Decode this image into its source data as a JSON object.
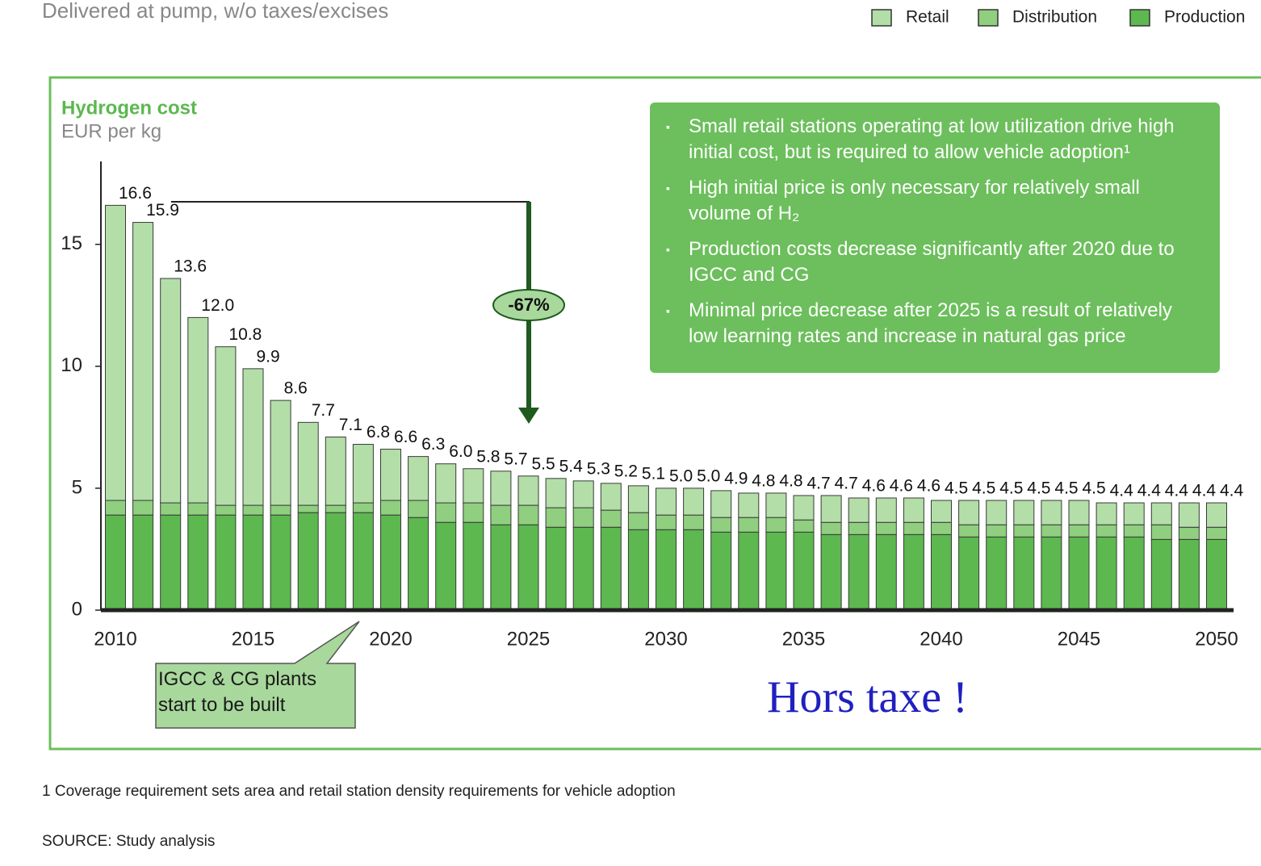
{
  "chart_data": {
    "type": "stacked_bar",
    "subtitle_top": "Delivered at pump, w/o taxes/excises",
    "title": "Hydrogen cost",
    "y_label": "EUR per kg",
    "categories": [
      "2010",
      null,
      null,
      null,
      null,
      "2015",
      null,
      null,
      null,
      null,
      "2020",
      null,
      null,
      null,
      null,
      "2025",
      null,
      null,
      null,
      null,
      "2030",
      null,
      null,
      null,
      null,
      "2035",
      null,
      null,
      null,
      null,
      "2040",
      null,
      null,
      null,
      null,
      "2045",
      null,
      null,
      null,
      null,
      "2050"
    ],
    "series": [
      {
        "name": "Production",
        "color": "#5cb84f",
        "values": [
          3.9,
          3.9,
          3.9,
          3.9,
          3.9,
          3.9,
          3.9,
          4.0,
          4.0,
          4.0,
          3.9,
          3.8,
          3.6,
          3.6,
          3.5,
          3.5,
          3.4,
          3.4,
          3.4,
          3.3,
          3.3,
          3.3,
          3.2,
          3.2,
          3.2,
          3.2,
          3.1,
          3.1,
          3.1,
          3.1,
          3.1,
          3.0,
          3.0,
          3.0,
          3.0,
          3.0,
          3.0,
          3.0,
          2.9,
          2.9,
          2.9
        ]
      },
      {
        "name": "Distribution",
        "color": "#8fcf7f",
        "values": [
          0.6,
          0.6,
          0.5,
          0.5,
          0.4,
          0.4,
          0.4,
          0.3,
          0.3,
          0.4,
          0.6,
          0.7,
          0.8,
          0.8,
          0.8,
          0.8,
          0.8,
          0.8,
          0.7,
          0.7,
          0.6,
          0.6,
          0.6,
          0.6,
          0.6,
          0.5,
          0.5,
          0.5,
          0.5,
          0.5,
          0.5,
          0.5,
          0.5,
          0.5,
          0.5,
          0.5,
          0.5,
          0.5,
          0.6,
          0.5,
          0.5
        ]
      },
      {
        "name": "Retail",
        "color": "#b3dea8",
        "values": [
          12.1,
          11.4,
          9.2,
          7.6,
          6.5,
          5.6,
          4.3,
          3.4,
          2.8,
          2.4,
          2.1,
          1.8,
          1.6,
          1.4,
          1.4,
          1.2,
          1.2,
          1.1,
          1.1,
          1.1,
          1.1,
          1.1,
          1.1,
          1.0,
          1.0,
          1.0,
          1.1,
          1.0,
          1.0,
          1.0,
          0.9,
          1.0,
          1.0,
          1.0,
          1.0,
          1.0,
          0.9,
          0.9,
          0.9,
          1.0,
          1.0
        ]
      }
    ],
    "totals": {
      "values": [
        16.6,
        15.9,
        13.6,
        12.0,
        10.8,
        9.9,
        8.6,
        7.7,
        7.1,
        6.8,
        6.6,
        6.3,
        6.0,
        5.8,
        5.7,
        5.5,
        5.4,
        5.3,
        5.2,
        5.1,
        5.0,
        5.0,
        4.9,
        4.8,
        4.8,
        4.7,
        4.7,
        4.6,
        4.6,
        4.6,
        4.5,
        4.5,
        4.5,
        4.5,
        4.5,
        4.5,
        4.4,
        4.4,
        4.4,
        4.4,
        4.4
      ],
      "value_labels": [
        "16.6",
        "15.9",
        "13.6",
        "12.0",
        "10.8",
        "9.9",
        "8.6",
        "7.7",
        "7.1",
        "6.8",
        "6.6",
        "6.3",
        "6.0",
        "5.8",
        "5.7",
        "5.5",
        "5.4",
        "5.3",
        "5.2",
        "5.1",
        "5.0",
        "5.0",
        "4.9",
        "4.8",
        "4.8",
        "4.7",
        "4.7",
        "4.6",
        "4.6",
        "4.6",
        "4.5",
        "4.5",
        "4.5",
        "4.5",
        "4.5",
        "4.5",
        "4.4",
        "4.4",
        "4.4",
        "4.4",
        "4.4"
      ]
    },
    "ylim": [
      0,
      18.4
    ],
    "yticks": [
      0,
      5,
      10,
      15
    ],
    "reduction_label": "-67%",
    "callout": "IGCC & CG plants start to be built",
    "handwritten_note": "Hors taxe !",
    "notes": [
      "Small retail stations operating at low utilization drive high initial cost, but is required to allow vehicle adoption¹",
      "High initial price is only necessary for relatively small volume of H₂",
      "Production costs decrease significantly after 2020 due to IGCC and CG",
      "Minimal price decrease after 2025 is a result of relatively low learning rates and increase in natural gas price"
    ],
    "footnote": "1 Coverage requirement sets area and retail station density requirements for vehicle adoption",
    "source": "SOURCE: Study analysis"
  }
}
